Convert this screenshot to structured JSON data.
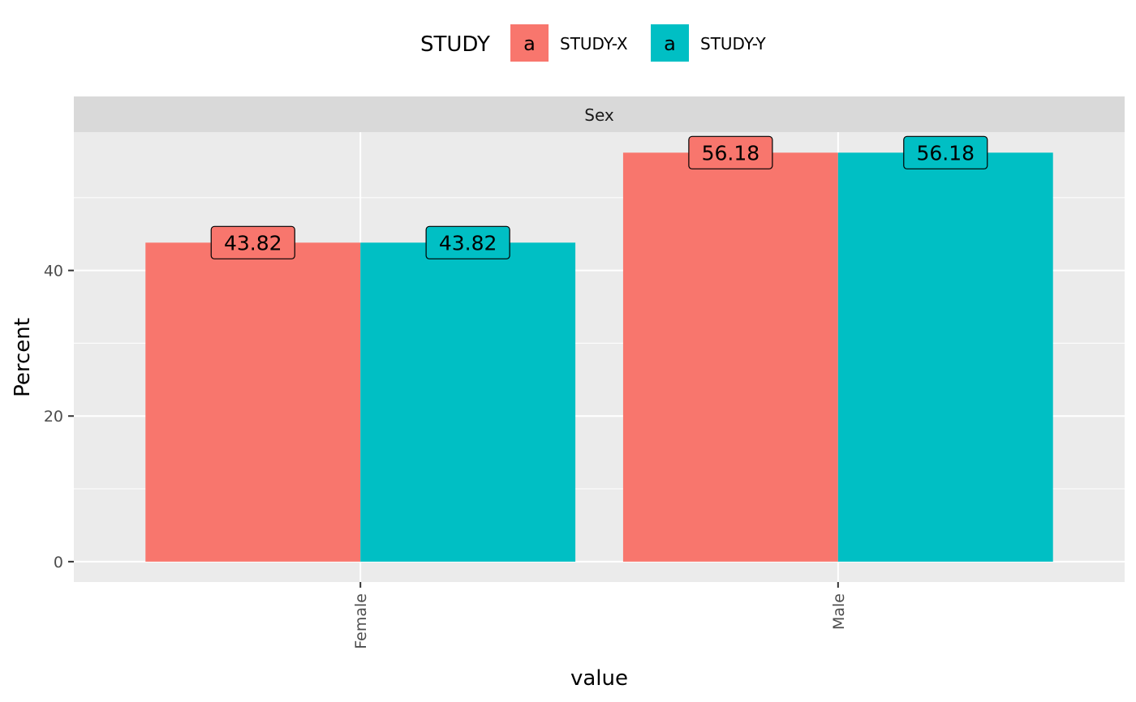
{
  "chart_data": {
    "type": "bar",
    "facet_label": "Sex",
    "xlabel": "value",
    "ylabel": "Percent",
    "categories": [
      "Female",
      "Male"
    ],
    "series": [
      {
        "name": "STUDY-X",
        "values": [
          43.82,
          56.18
        ],
        "color": "#F8766D"
      },
      {
        "name": "STUDY-Y",
        "values": [
          43.82,
          56.18
        ],
        "color": "#00BFC4"
      }
    ],
    "ylim": [
      -2.8,
      59
    ],
    "y_ticks": [
      0,
      20,
      40
    ],
    "data_labels": [
      [
        "43.82",
        "56.18"
      ],
      [
        "43.82",
        "56.18"
      ]
    ],
    "legend": {
      "title": "STUDY",
      "position": "top",
      "key_glyph": "a",
      "entries": [
        "STUDY-X",
        "STUDY-Y"
      ]
    },
    "grid": true,
    "panel_background": "#EBEBEB",
    "strip_background": "#D9D9D9"
  }
}
